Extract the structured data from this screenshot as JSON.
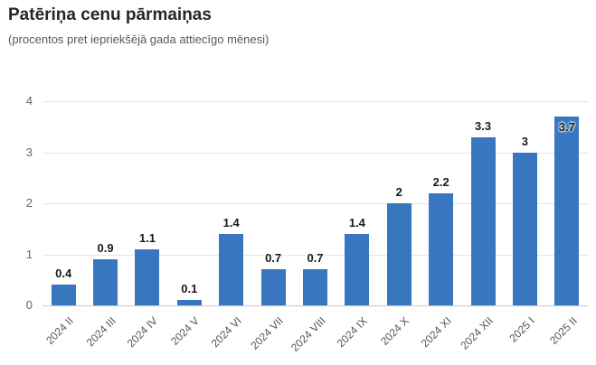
{
  "chart_data": {
    "type": "bar",
    "title": "Patēriņa cenu pārmaiņas",
    "subtitle": "(procentos pret iepriekšējā gada attiecīgo mēnesi)",
    "categories": [
      "2024 II",
      "2024 III",
      "2024 IV",
      "2024 V",
      "2024 VI",
      "2024 VII",
      "2024 VIII",
      "2024 IX",
      "2024 X",
      "2024 XI",
      "2024 XII",
      "2025 I",
      "2025 II"
    ],
    "values": [
      0.4,
      0.9,
      1.1,
      0.1,
      1.4,
      0.7,
      0.7,
      1.4,
      2,
      2.2,
      3.3,
      3,
      3.7
    ],
    "value_labels": [
      "0.4",
      "0.9",
      "1.1",
      "0.1",
      "1.4",
      "0.7",
      "0.7",
      "1.4",
      "2",
      "2.2",
      "3.3",
      "3",
      "3.7"
    ],
    "xlabel": "",
    "ylabel": "",
    "ylim": [
      0,
      4
    ],
    "yticks": [
      "0",
      "1",
      "2",
      "3",
      "4"
    ],
    "grid": true,
    "legend": "none",
    "colors": {
      "bar": "#3876bf",
      "grid": "#e4e4e4",
      "baseline": "#c9c9c9",
      "data_label": "#1a1a1a",
      "axis_label": "#666666",
      "category_label": "#555555",
      "title": "#262626",
      "subtitle": "#595959"
    }
  }
}
